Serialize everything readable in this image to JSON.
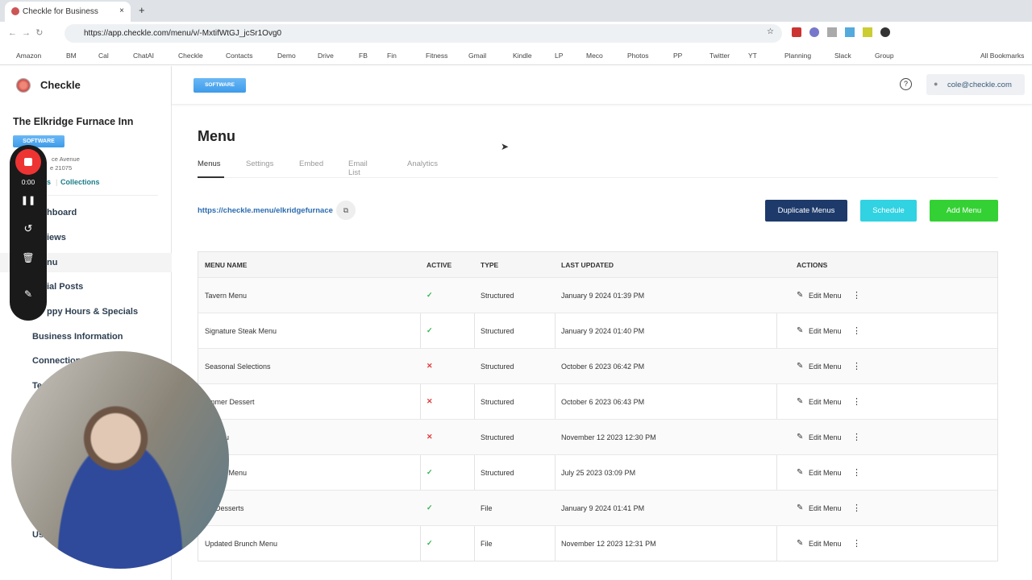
{
  "browser": {
    "tab_title": "Checkle for Business",
    "url": "https://app.checkle.com/menu/v/-MxtifWtGJ_jcSr1Ovg0",
    "bookmarks": [
      "Amazon",
      "BM",
      "Cal",
      "ChatAI",
      "Checkle",
      "Contacts",
      "Demo",
      "Drive",
      "FB",
      "Fin",
      "Fitness",
      "Gmail",
      "Kindle",
      "LP",
      "Meco",
      "Photos",
      "PP",
      "Twitter",
      "YT",
      "Planning",
      "Slack",
      "Group"
    ],
    "all_bookmarks": "All Bookmarks"
  },
  "sidebar": {
    "brand": "Checkle",
    "business_name": "The Elkridge Furnace Inn",
    "badge": "SOFTWARE",
    "address_lines": [
      "ce Avenue",
      "e 21075"
    ],
    "links": [
      "s",
      "Collections"
    ],
    "nav": [
      "hboard",
      "iews",
      "nu",
      "ial Posts",
      "ppy Hours & Specials",
      "Business Information",
      "Connection",
      "Te",
      "Us"
    ]
  },
  "recorder": {
    "time": "0:00"
  },
  "header": {
    "badge": "SOFTWARE",
    "user": "cole@checkle.com"
  },
  "main": {
    "title": "Menu",
    "tabs": [
      "Menus",
      "Settings",
      "Embed",
      "Email List",
      "Analytics"
    ],
    "public_link": "https://checkle.menu/elkridgefurnace",
    "buttons": [
      "Duplicate Menus",
      "Schedule",
      "Add Menu"
    ],
    "table": {
      "headers": [
        "MENU NAME",
        "ACTIVE",
        "TYPE",
        "LAST UPDATED",
        "ACTIONS"
      ],
      "rows": [
        [
          "Tavern Menu",
          "✓",
          "Structured",
          "January 9 2024 01:39 PM",
          "Edit Menu"
        ],
        [
          "Signature Steak Menu",
          "✓",
          "Structured",
          "January 9 2024 01:40 PM",
          "Edit Menu"
        ],
        [
          "Seasonal Selections",
          "✕",
          "Structured",
          "October 6 2023 06:42 PM",
          "Edit Menu"
        ],
        [
          "ummer Dessert",
          "✕",
          "Structured",
          "October 6 2023 06:43 PM",
          "Edit Menu"
        ],
        [
          "n Menu",
          "✕",
          "Structured",
          "November 12 2023 12:30 PM",
          "Edit Menu"
        ],
        [
          "oppets Menu",
          "✓",
          "Structured",
          "July 25 2023 03:09 PM",
          "Edit Menu"
        ],
        [
          "ter Desserts",
          "✓",
          "File",
          "January 9 2024 01:41 PM",
          "Edit Menu"
        ],
        [
          "Updated Brunch Menu",
          "✓",
          "File",
          "November 12 2023 12:31 PM",
          "Edit Menu"
        ]
      ]
    }
  }
}
